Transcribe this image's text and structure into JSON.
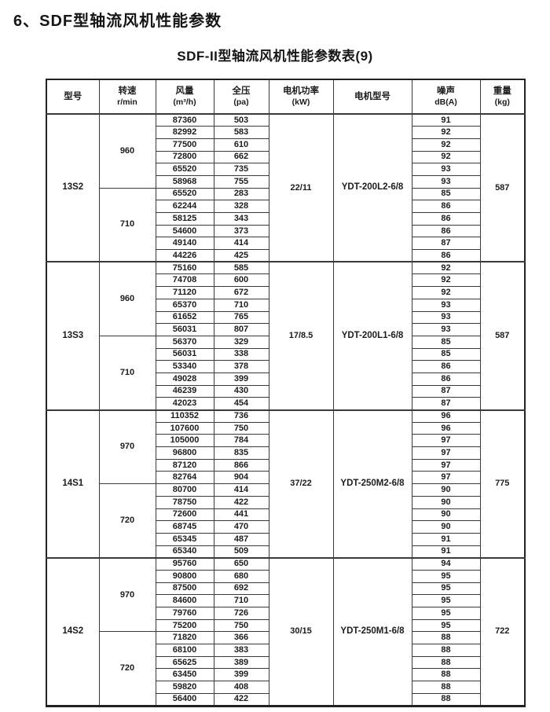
{
  "page": {
    "title": "6、SDF型轴流风机性能参数",
    "subtitle": "SDF-II型轴流风机性能参数表(9)"
  },
  "table": {
    "headers": [
      {
        "label": "型号",
        "unit": ""
      },
      {
        "label": "转速",
        "unit": "r/min"
      },
      {
        "label": "风量",
        "unit": "(m³/h)"
      },
      {
        "label": "全压",
        "unit": "(pa)"
      },
      {
        "label": "电机功率",
        "unit": "(kW)"
      },
      {
        "label": "电机型号",
        "unit": ""
      },
      {
        "label": "噪声",
        "unit": "dB(A)"
      },
      {
        "label": "重量",
        "unit": "(kg)"
      }
    ],
    "columns_note": "rows are [airflow_m3h, pressure_pa, noise_dBA]",
    "sections": [
      {
        "model": "13S2",
        "power": "22/11",
        "motor": "YDT-200L2-6/8",
        "weight": "587",
        "groups": [
          {
            "speed": "960",
            "rows": [
              [
                "87360",
                "503",
                "91"
              ],
              [
                "82992",
                "583",
                "92"
              ],
              [
                "77500",
                "610",
                "92"
              ],
              [
                "72800",
                "662",
                "92"
              ],
              [
                "65520",
                "735",
                "93"
              ],
              [
                "58968",
                "755",
                "93"
              ]
            ]
          },
          {
            "speed": "710",
            "rows": [
              [
                "65520",
                "283",
                "85"
              ],
              [
                "62244",
                "328",
                "86"
              ],
              [
                "58125",
                "343",
                "86"
              ],
              [
                "54600",
                "373",
                "86"
              ],
              [
                "49140",
                "414",
                "87"
              ],
              [
                "44226",
                "425",
                "86"
              ]
            ]
          }
        ]
      },
      {
        "model": "13S3",
        "power": "17/8.5",
        "motor": "YDT-200L1-6/8",
        "weight": "587",
        "groups": [
          {
            "speed": "960",
            "rows": [
              [
                "75160",
                "585",
                "92"
              ],
              [
                "74708",
                "600",
                "92"
              ],
              [
                "71120",
                "672",
                "92"
              ],
              [
                "65370",
                "710",
                "93"
              ],
              [
                "61652",
                "765",
                "93"
              ],
              [
                "56031",
                "807",
                "93"
              ]
            ]
          },
          {
            "speed": "710",
            "rows": [
              [
                "56370",
                "329",
                "85"
              ],
              [
                "56031",
                "338",
                "85"
              ],
              [
                "53340",
                "378",
                "86"
              ],
              [
                "49028",
                "399",
                "86"
              ],
              [
                "46239",
                "430",
                "87"
              ],
              [
                "42023",
                "454",
                "87"
              ]
            ]
          }
        ]
      },
      {
        "model": "14S1",
        "power": "37/22",
        "motor": "YDT-250M2-6/8",
        "weight": "775",
        "groups": [
          {
            "speed": "970",
            "rows": [
              [
                "110352",
                "736",
                "96"
              ],
              [
                "107600",
                "750",
                "96"
              ],
              [
                "105000",
                "784",
                "97"
              ],
              [
                "96800",
                "835",
                "97"
              ],
              [
                "87120",
                "866",
                "97"
              ],
              [
                "82764",
                "904",
                "97"
              ]
            ]
          },
          {
            "speed": "720",
            "rows": [
              [
                "80700",
                "414",
                "90"
              ],
              [
                "78750",
                "422",
                "90"
              ],
              [
                "72600",
                "441",
                "90"
              ],
              [
                "68745",
                "470",
                "90"
              ],
              [
                "65345",
                "487",
                "91"
              ],
              [
                "65340",
                "509",
                "91"
              ]
            ]
          }
        ]
      },
      {
        "model": "14S2",
        "power": "30/15",
        "motor": "YDT-250M1-6/8",
        "weight": "722",
        "groups": [
          {
            "speed": "970",
            "rows": [
              [
                "95760",
                "650",
                "94"
              ],
              [
                "90800",
                "680",
                "95"
              ],
              [
                "87500",
                "692",
                "95"
              ],
              [
                "84600",
                "710",
                "95"
              ],
              [
                "79760",
                "726",
                "95"
              ],
              [
                "75200",
                "750",
                "95"
              ]
            ]
          },
          {
            "speed": "720",
            "rows": [
              [
                "71820",
                "366",
                "88"
              ],
              [
                "68100",
                "383",
                "88"
              ],
              [
                "65625",
                "389",
                "88"
              ],
              [
                "63450",
                "399",
                "88"
              ],
              [
                "59820",
                "408",
                "88"
              ],
              [
                "56400",
                "422",
                "88"
              ]
            ]
          }
        ]
      }
    ]
  }
}
